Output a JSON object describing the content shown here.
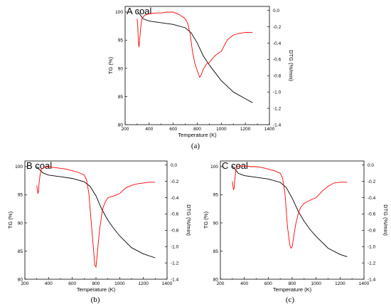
{
  "chart_data": [
    {
      "type": "line",
      "title": "A coal",
      "caption": "(a)",
      "xlabel": "Temperature (K)",
      "ylabel_left": "TG (%)",
      "ylabel_right": "DTG (%/min)",
      "xlim": [
        200,
        1400
      ],
      "ylim_left": [
        80,
        101
      ],
      "ylim_right": [
        -1.4,
        0.05
      ],
      "xticks": [
        "200",
        "400",
        "600",
        "800",
        "1000",
        "1200",
        "1400"
      ],
      "yticks_left": [
        "80",
        "85",
        "90",
        "95",
        "100"
      ],
      "yticks_right": [
        "0.0",
        "-0.2",
        "-0.4",
        "-0.6",
        "-0.8",
        "-1.0",
        "-1.2",
        "-1.4"
      ],
      "series": [
        {
          "axis": "left",
          "color": "#000000",
          "x": [
            300,
            350,
            400,
            500,
            600,
            700,
            750,
            800,
            850,
            900,
            950,
            1000,
            1100,
            1200,
            1260
          ],
          "y": [
            100.2,
            98.8,
            98.4,
            98.1,
            97.8,
            97.2,
            96.3,
            94.5,
            92.2,
            90.6,
            89.2,
            87.8,
            85.8,
            84.6,
            83.9
          ]
        },
        {
          "axis": "right",
          "color": "#ff0000",
          "x": [
            300,
            305,
            310,
            315,
            320,
            330,
            340,
            360,
            380,
            400,
            450,
            500,
            550,
            600,
            650,
            700,
            720,
            740,
            760,
            780,
            800,
            820,
            830,
            850,
            880,
            900,
            920,
            950,
            1000,
            1050,
            1100,
            1150,
            1200,
            1260
          ],
          "y": [
            -0.1,
            -0.2,
            -0.38,
            -0.45,
            -0.38,
            -0.2,
            -0.1,
            -0.06,
            -0.05,
            -0.04,
            -0.03,
            -0.03,
            -0.02,
            -0.02,
            -0.05,
            -0.1,
            -0.16,
            -0.28,
            -0.5,
            -0.65,
            -0.74,
            -0.82,
            -0.8,
            -0.72,
            -0.65,
            -0.64,
            -0.6,
            -0.55,
            -0.5,
            -0.36,
            -0.3,
            -0.28,
            -0.27,
            -0.27
          ]
        }
      ]
    },
    {
      "type": "line",
      "title": "B coal",
      "caption": "(b)",
      "xlabel": "Temperature (K)",
      "ylabel_left": "TG (%)",
      "ylabel_right": "DTG (%/min)",
      "xlim": [
        200,
        1400
      ],
      "ylim_left": [
        80,
        101
      ],
      "ylim_right": [
        -1.4,
        0.05
      ],
      "xticks": [
        "200",
        "400",
        "600",
        "800",
        "1000",
        "1200",
        "1400"
      ],
      "yticks_left": [
        "80",
        "85",
        "90",
        "95",
        "100"
      ],
      "yticks_right": [
        "0.0",
        "-0.2",
        "-0.4",
        "-0.6",
        "-0.8",
        "-1.0",
        "-1.2",
        "-1.4"
      ],
      "series": [
        {
          "axis": "left",
          "color": "#000000",
          "x": [
            300,
            350,
            400,
            500,
            600,
            700,
            750,
            800,
            850,
            900,
            950,
            1000,
            1100,
            1200,
            1300
          ],
          "y": [
            100.0,
            98.9,
            98.5,
            98.2,
            97.9,
            97.3,
            96.5,
            94.8,
            92.4,
            90.5,
            89.0,
            87.7,
            85.6,
            84.5,
            83.8
          ]
        },
        {
          "axis": "right",
          "color": "#ff0000",
          "x": [
            300,
            305,
            310,
            315,
            320,
            330,
            340,
            360,
            380,
            400,
            450,
            500,
            550,
            600,
            650,
            700,
            720,
            740,
            760,
            780,
            790,
            800,
            810,
            830,
            850,
            860,
            880,
            900,
            950,
            1000,
            1050,
            1100,
            1150,
            1200,
            1250,
            1300
          ],
          "y": [
            -0.25,
            -0.3,
            -0.35,
            -0.32,
            -0.22,
            -0.1,
            -0.05,
            -0.03,
            -0.02,
            -0.02,
            -0.03,
            -0.04,
            -0.05,
            -0.07,
            -0.09,
            -0.12,
            -0.18,
            -0.35,
            -0.7,
            -1.05,
            -1.23,
            -1.25,
            -1.1,
            -0.8,
            -0.6,
            -0.52,
            -0.45,
            -0.4,
            -0.38,
            -0.35,
            -0.28,
            -0.25,
            -0.23,
            -0.22,
            -0.21,
            -0.21
          ]
        }
      ]
    },
    {
      "type": "line",
      "title": "C coal",
      "caption": "(c)",
      "xlabel": "Temperature (K)",
      "ylabel_left": "TG (%)",
      "ylabel_right": "DTG (%/min)",
      "xlim": [
        200,
        1400
      ],
      "ylim_left": [
        80,
        101
      ],
      "ylim_right": [
        -1.4,
        0.05
      ],
      "xticks": [
        "200",
        "400",
        "600",
        "800",
        "1000",
        "1200",
        "1400"
      ],
      "yticks_left": [
        "80",
        "85",
        "90",
        "95",
        "100"
      ],
      "yticks_right": [
        "0.0",
        "-0.2",
        "-0.4",
        "-0.6",
        "-0.8",
        "-1.0",
        "-1.2",
        "-1.4"
      ],
      "series": [
        {
          "axis": "left",
          "color": "#000000",
          "x": [
            300,
            350,
            400,
            500,
            600,
            700,
            750,
            800,
            850,
            900,
            950,
            1000,
            1100,
            1200,
            1260
          ],
          "y": [
            100.1,
            98.8,
            98.4,
            98.1,
            97.8,
            97.2,
            96.3,
            94.4,
            92.1,
            90.3,
            88.8,
            87.6,
            85.5,
            84.4,
            84.0
          ]
        },
        {
          "axis": "right",
          "color": "#ff0000",
          "x": [
            300,
            305,
            310,
            315,
            320,
            330,
            340,
            360,
            400,
            450,
            500,
            550,
            600,
            650,
            700,
            720,
            740,
            760,
            780,
            790,
            800,
            810,
            830,
            850,
            870,
            900,
            950,
            1000,
            1050,
            1100,
            1150,
            1200,
            1260
          ],
          "y": [
            -0.2,
            -0.26,
            -0.3,
            -0.28,
            -0.18,
            -0.06,
            -0.02,
            -0.01,
            -0.01,
            -0.02,
            -0.02,
            -0.03,
            -0.05,
            -0.07,
            -0.1,
            -0.16,
            -0.35,
            -0.75,
            -0.98,
            -1.02,
            -1.0,
            -0.9,
            -0.72,
            -0.6,
            -0.52,
            -0.47,
            -0.43,
            -0.4,
            -0.32,
            -0.26,
            -0.22,
            -0.21,
            -0.21
          ]
        }
      ]
    }
  ]
}
